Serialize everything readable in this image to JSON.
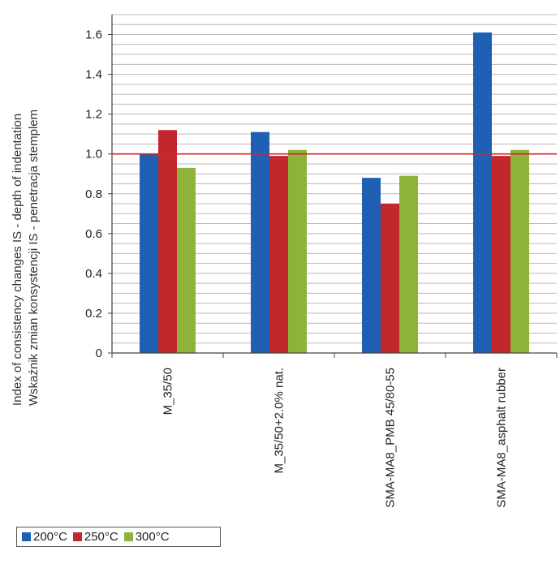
{
  "chart_data": {
    "type": "bar",
    "ylabel_lines": [
      "Index of consistency changes IS - depth of indentation",
      "Wskaźnik zmian konsystencji IS - penetracja stemplem"
    ],
    "categories": [
      "M_35/50",
      "M_35/50+2.0% nat.",
      "SMA-MA8_PMB 45/80-55",
      "SMA-MA8_asphalt rubber"
    ],
    "series": [
      {
        "name": "200°C",
        "color": "#1f5fb4",
        "values": [
          1.0,
          1.11,
          0.88,
          1.61
        ]
      },
      {
        "name": "250°C",
        "color": "#c1272d",
        "values": [
          1.12,
          0.99,
          0.75,
          0.99
        ]
      },
      {
        "name": "300°C",
        "color": "#8db33a",
        "values": [
          0.93,
          1.02,
          0.89,
          1.02
        ]
      }
    ],
    "ylim": [
      0,
      1.7
    ],
    "yticks": [
      "0",
      "0.2",
      "0.4",
      "0.6",
      "0.8",
      "1.0",
      "1.2",
      "1.4",
      "1.6"
    ],
    "reference_line": {
      "value": 1.0,
      "color": "#d9232d"
    },
    "grid": true,
    "legend_position": "bottom-left"
  }
}
